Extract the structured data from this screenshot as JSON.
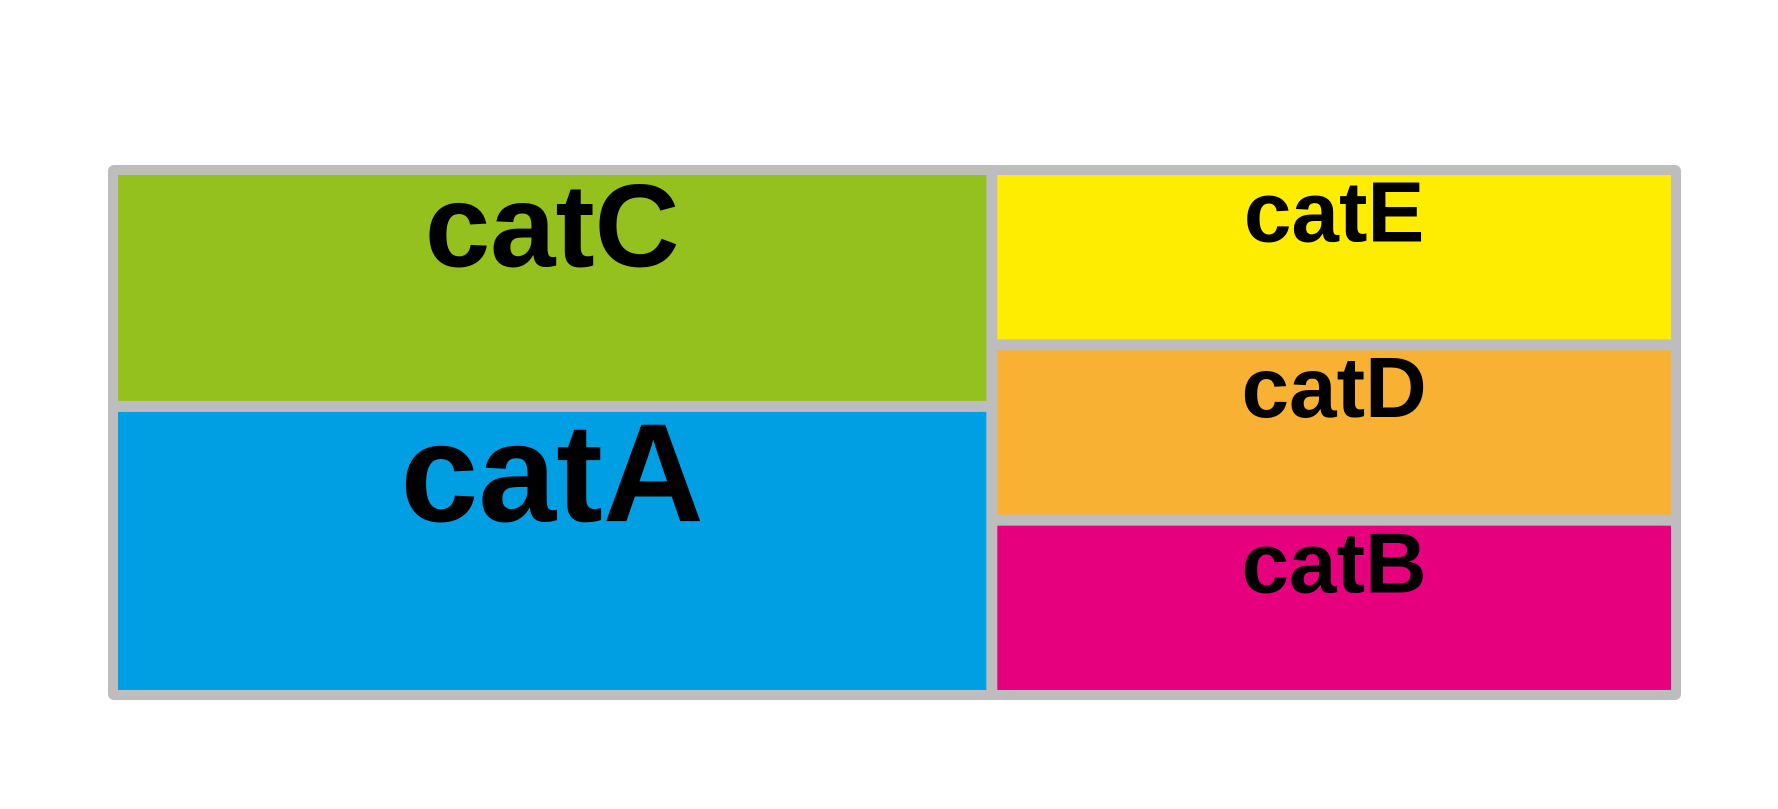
{
  "chart_data": {
    "type": "treemap",
    "title": "",
    "border_color": "#bdbdbd",
    "label_color": "#000000",
    "items": [
      {
        "label": "catC",
        "value": 26,
        "color": "#95c11f"
      },
      {
        "label": "catA",
        "value": 32,
        "color": "#009fe3"
      },
      {
        "label": "catE",
        "value": 15,
        "color": "#ffed00"
      },
      {
        "label": "catD",
        "value": 15,
        "color": "#f8b133"
      },
      {
        "label": "catB",
        "value": 15,
        "color": "#e6007e"
      }
    ],
    "layout_groups": [
      [
        "catC",
        "catA"
      ],
      [
        "catE",
        "catD",
        "catB"
      ]
    ]
  }
}
